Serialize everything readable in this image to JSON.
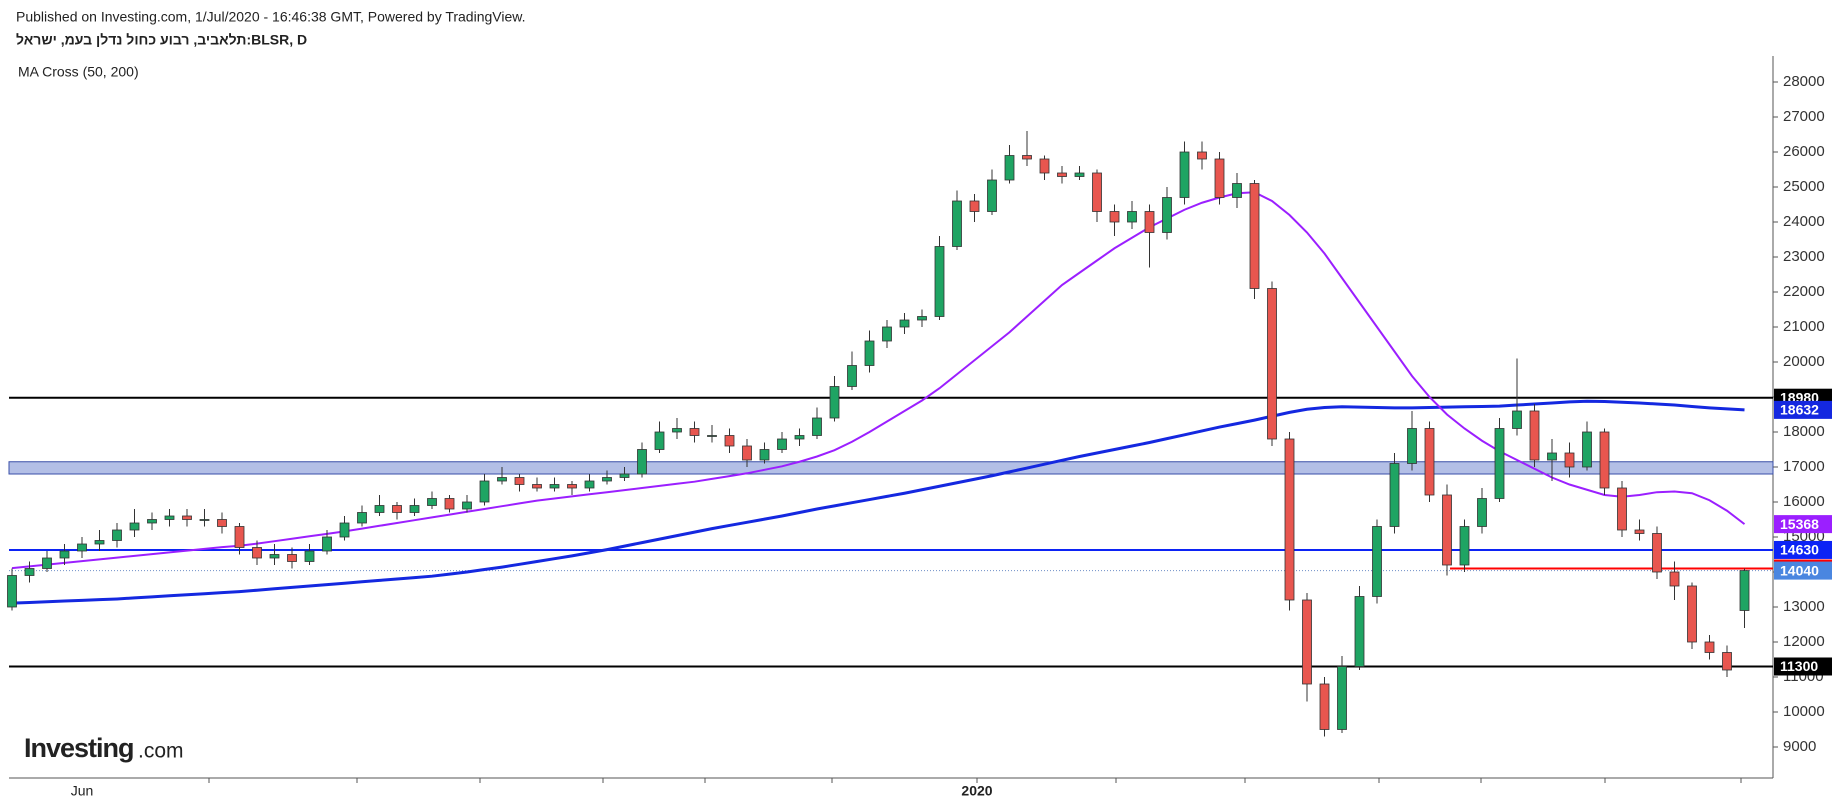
{
  "header": {
    "published": "Published on Investing.com, 1/Jul/2020 - 16:46:38 GMT, Powered by TradingView.",
    "symbol": "תלאביב, רבוע כחול נדלן בעמ, ישראל:BLSR, D",
    "indicator": "MA Cross (50, 200)"
  },
  "logo": {
    "brand": "Investing",
    "suffix": ".com"
  },
  "chart_data": {
    "type": "candlestick",
    "up_color": "#1fa463",
    "down_color": "#e8564f",
    "candles": [
      [
        13000,
        14100,
        12900,
        13900
      ],
      [
        13900,
        14300,
        13700,
        14100
      ],
      [
        14100,
        14600,
        14000,
        14400
      ],
      [
        14400,
        14800,
        14200,
        14600
      ],
      [
        14600,
        15000,
        14400,
        14800
      ],
      [
        14800,
        15200,
        14600,
        14900
      ],
      [
        14900,
        15400,
        14700,
        15200
      ],
      [
        15200,
        15800,
        15000,
        15400
      ],
      [
        15400,
        15700,
        15200,
        15500
      ],
      [
        15500,
        15800,
        15300,
        15600
      ],
      [
        15600,
        15800,
        15300,
        15500
      ],
      [
        15500,
        15800,
        15300,
        15500
      ],
      [
        15500,
        15700,
        15100,
        15300
      ],
      [
        15300,
        15400,
        14500,
        14700
      ],
      [
        14700,
        14900,
        14200,
        14400
      ],
      [
        14400,
        14800,
        14200,
        14500
      ],
      [
        14500,
        14700,
        14100,
        14300
      ],
      [
        14300,
        14800,
        14200,
        14600
      ],
      [
        14600,
        15200,
        14500,
        15000
      ],
      [
        15000,
        15600,
        14900,
        15400
      ],
      [
        15400,
        15900,
        15300,
        15700
      ],
      [
        15700,
        16200,
        15600,
        15900
      ],
      [
        15900,
        16000,
        15500,
        15700
      ],
      [
        15700,
        16100,
        15600,
        15900
      ],
      [
        15900,
        16300,
        15800,
        16100
      ],
      [
        16100,
        16200,
        15700,
        15800
      ],
      [
        15800,
        16200,
        15700,
        16000
      ],
      [
        16000,
        16800,
        15900,
        16600
      ],
      [
        16600,
        17000,
        16500,
        16700
      ],
      [
        16700,
        16800,
        16300,
        16500
      ],
      [
        16500,
        16700,
        16300,
        16400
      ],
      [
        16400,
        16700,
        16300,
        16500
      ],
      [
        16500,
        16600,
        16200,
        16400
      ],
      [
        16400,
        16800,
        16300,
        16600
      ],
      [
        16600,
        16900,
        16500,
        16700
      ],
      [
        16700,
        17000,
        16600,
        16800
      ],
      [
        16800,
        17700,
        16700,
        17500
      ],
      [
        17500,
        18300,
        17400,
        18000
      ],
      [
        18000,
        18400,
        17800,
        18100
      ],
      [
        18100,
        18300,
        17700,
        17900
      ],
      [
        17900,
        18200,
        17700,
        17900
      ],
      [
        17900,
        18100,
        17400,
        17600
      ],
      [
        17600,
        17800,
        17000,
        17200
      ],
      [
        17200,
        17700,
        17100,
        17500
      ],
      [
        17500,
        18000,
        17400,
        17800
      ],
      [
        17800,
        18100,
        17600,
        17900
      ],
      [
        17900,
        18700,
        17800,
        18400
      ],
      [
        18400,
        19600,
        18300,
        19300
      ],
      [
        19300,
        20300,
        19200,
        19900
      ],
      [
        19900,
        20900,
        19700,
        20600
      ],
      [
        20600,
        21200,
        20400,
        21000
      ],
      [
        21000,
        21400,
        20800,
        21200
      ],
      [
        21200,
        21500,
        21000,
        21300
      ],
      [
        21300,
        23600,
        21200,
        23300
      ],
      [
        23300,
        24900,
        23200,
        24600
      ],
      [
        24600,
        24800,
        24000,
        24300
      ],
      [
        24300,
        25500,
        24200,
        25200
      ],
      [
        25200,
        26200,
        25100,
        25900
      ],
      [
        25900,
        26600,
        25600,
        25800
      ],
      [
        25800,
        25900,
        25200,
        25400
      ],
      [
        25400,
        25600,
        25100,
        25300
      ],
      [
        25300,
        25600,
        25200,
        25400
      ],
      [
        25400,
        25500,
        24000,
        24300
      ],
      [
        24300,
        24500,
        23600,
        24000
      ],
      [
        24000,
        24600,
        23800,
        24300
      ],
      [
        24300,
        24500,
        22700,
        23700
      ],
      [
        23700,
        25000,
        23500,
        24700
      ],
      [
        24700,
        26300,
        24500,
        26000
      ],
      [
        26000,
        26300,
        25500,
        25800
      ],
      [
        25800,
        26000,
        24500,
        24700
      ],
      [
        24700,
        25400,
        24400,
        25100
      ],
      [
        25100,
        25200,
        21800,
        22100
      ],
      [
        22100,
        22300,
        17600,
        17800
      ],
      [
        17800,
        18000,
        12900,
        13200
      ],
      [
        13200,
        13400,
        10300,
        10800
      ],
      [
        10800,
        11000,
        9300,
        9500
      ],
      [
        9500,
        11600,
        9400,
        11300
      ],
      [
        11300,
        13600,
        11200,
        13300
      ],
      [
        13300,
        15500,
        13100,
        15300
      ],
      [
        15300,
        17400,
        15100,
        17100
      ],
      [
        17100,
        18600,
        16900,
        18100
      ],
      [
        18100,
        18300,
        16000,
        16200
      ],
      [
        16200,
        16500,
        13900,
        14200
      ],
      [
        14200,
        15500,
        14000,
        15300
      ],
      [
        15300,
        16400,
        15100,
        16100
      ],
      [
        16100,
        18400,
        16000,
        18100
      ],
      [
        18100,
        20100,
        17900,
        18600
      ],
      [
        18600,
        18800,
        17000,
        17200
      ],
      [
        17200,
        17800,
        16600,
        17400
      ],
      [
        17400,
        17700,
        16700,
        17000
      ],
      [
        17000,
        18300,
        16900,
        18000
      ],
      [
        18000,
        18100,
        16200,
        16400
      ],
      [
        16400,
        16600,
        15000,
        15200
      ],
      [
        15200,
        15500,
        14900,
        15100
      ],
      [
        15100,
        15300,
        13800,
        14000
      ],
      [
        14000,
        14300,
        13200,
        13600
      ],
      [
        13600,
        13700,
        11800,
        12000
      ],
      [
        12000,
        12200,
        11500,
        11700
      ],
      [
        11700,
        11900,
        11000,
        11200
      ],
      [
        12900,
        14100,
        12400,
        14040
      ]
    ],
    "ma50": {
      "color": "#9b1fff",
      "values": [
        14110,
        14160,
        14210,
        14260,
        14310,
        14360,
        14410,
        14460,
        14510,
        14560,
        14610,
        14660,
        14710,
        14750,
        14810,
        14880,
        14950,
        15020,
        15090,
        15160,
        15240,
        15320,
        15400,
        15480,
        15560,
        15640,
        15720,
        15800,
        15880,
        15960,
        16040,
        16100,
        16160,
        16220,
        16280,
        16340,
        16400,
        16460,
        16520,
        16580,
        16660,
        16740,
        16820,
        16920,
        17020,
        17150,
        17300,
        17480,
        17720,
        18000,
        18300,
        18600,
        18900,
        19250,
        19650,
        20050,
        20450,
        20850,
        21300,
        21750,
        22200,
        22550,
        22900,
        23250,
        23550,
        23850,
        24100,
        24350,
        24550,
        24700,
        24820,
        24850,
        24600,
        24200,
        23700,
        23100,
        22400,
        21700,
        21000,
        20300,
        19600,
        19000,
        18500,
        18100,
        17750,
        17450,
        17200,
        16950,
        16700,
        16500,
        16350,
        16200,
        16150,
        16200,
        16280,
        16300,
        16250,
        16050,
        15750,
        15368
      ]
    },
    "ma200": {
      "color": "#1428e0",
      "values": [
        13110,
        13130,
        13150,
        13170,
        13190,
        13210,
        13230,
        13260,
        13290,
        13320,
        13350,
        13380,
        13410,
        13440,
        13480,
        13520,
        13560,
        13600,
        13640,
        13680,
        13720,
        13760,
        13800,
        13840,
        13880,
        13940,
        14000,
        14070,
        14140,
        14220,
        14300,
        14380,
        14460,
        14550,
        14640,
        14740,
        14840,
        14940,
        15040,
        15140,
        15240,
        15330,
        15420,
        15510,
        15600,
        15700,
        15800,
        15890,
        15980,
        16070,
        16160,
        16250,
        16350,
        16450,
        16550,
        16650,
        16750,
        16860,
        16970,
        17080,
        17190,
        17300,
        17400,
        17500,
        17600,
        17700,
        17810,
        17920,
        18030,
        18140,
        18240,
        18340,
        18450,
        18560,
        18650,
        18700,
        18720,
        18710,
        18700,
        18690,
        18690,
        18700,
        18710,
        18720,
        18730,
        18740,
        18770,
        18800,
        18830,
        18860,
        18880,
        18870,
        18850,
        18830,
        18800,
        18770,
        18730,
        18690,
        18660,
        18632
      ]
    },
    "ylim": [
      8114,
      28743
    ],
    "yticks": [
      9000,
      10000,
      11000,
      12000,
      13000,
      14000,
      15000,
      16000,
      17000,
      18000,
      19000,
      20000,
      21000,
      22000,
      23000,
      24000,
      25000,
      26000,
      27000,
      28000
    ],
    "xlabels": [
      "Jun",
      "2020"
    ],
    "hlines": [
      {
        "value": 18980,
        "color": "#000000"
      },
      {
        "value": 14630,
        "color": "#0c23f5"
      },
      {
        "value": 11300,
        "color": "#000000"
      }
    ],
    "band": {
      "lower": 16800,
      "upper": 17150,
      "color": "#b3bfe6",
      "border": "#3a4fa8"
    },
    "ray": {
      "value": 14100,
      "color": "#ff0000"
    },
    "last_color": "#4a86e0"
  }
}
